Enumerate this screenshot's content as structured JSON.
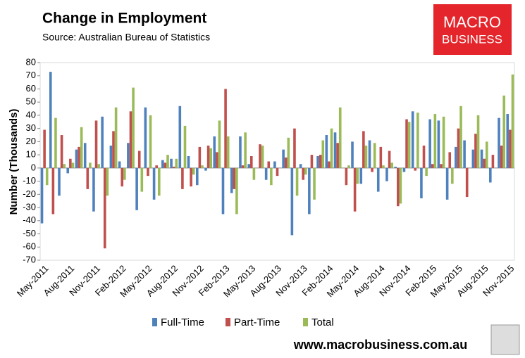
{
  "chart_data": {
    "type": "bar",
    "title": "Change in Employment",
    "subtitle": "Source: Australian Bureau of Statistics",
    "ylabel": "Number (Thousands)",
    "logo": [
      "MACRO",
      "BUSINESS"
    ],
    "footer": "www.macrobusiness.com.au",
    "categories": [
      "May-2011",
      null,
      null,
      "Aug-2011",
      null,
      null,
      "Nov-2011",
      null,
      null,
      "Feb-2012",
      null,
      null,
      "May-2012",
      null,
      null,
      "Aug-2012",
      null,
      null,
      "Nov-2012",
      null,
      null,
      "Feb-2013",
      null,
      null,
      "May-2013",
      null,
      null,
      "Aug-2013",
      null,
      null,
      "Nov-2013",
      null,
      null,
      "Feb-2014",
      null,
      null,
      "May-2014",
      null,
      null,
      "Aug-2014",
      null,
      null,
      "Nov-2014",
      null,
      null,
      "Feb-2015",
      null,
      null,
      "May-2015",
      null,
      null,
      "Aug-2015",
      null,
      null,
      "Nov-2015"
    ],
    "series": [
      {
        "name": "Full-Time",
        "color": "#4f81bd",
        "values": [
          -42,
          73,
          -21,
          -4,
          14,
          19,
          -33,
          39,
          17,
          5,
          19,
          -32,
          46,
          -24,
          6,
          7,
          47,
          9,
          -13,
          -2,
          24,
          -35,
          -19,
          24,
          3,
          0,
          -9,
          5,
          14,
          -51,
          3,
          -35,
          9,
          25,
          27,
          0,
          20,
          -12,
          21,
          -18,
          -10,
          1,
          -3,
          43,
          -23,
          37,
          36,
          -24,
          16,
          21,
          14,
          14,
          -11,
          38,
          41
        ]
      },
      {
        "name": "Part-Time",
        "color": "#c0504d",
        "values": [
          29,
          -35,
          25,
          7,
          16,
          -16,
          36,
          -61,
          28,
          -14,
          43,
          13,
          -6,
          2,
          4,
          1,
          -16,
          -14,
          16,
          17,
          12,
          60,
          -16,
          2,
          9,
          18,
          5,
          -6,
          8,
          30,
          -9,
          10,
          10,
          5,
          19,
          -13,
          -33,
          28,
          -3,
          16,
          13,
          -29,
          37,
          -2,
          17,
          3,
          3,
          12,
          30,
          -22,
          26,
          7,
          10,
          17,
          29
        ]
      },
      {
        "name": "Total",
        "color": "#9bbb59",
        "values": [
          -13,
          38,
          3,
          4,
          31,
          4,
          3,
          -21,
          46,
          -9,
          61,
          -18,
          40,
          -21,
          10,
          7,
          32,
          -5,
          2,
          15,
          36,
          24,
          -35,
          27,
          -9,
          17,
          -13,
          0,
          23,
          -21,
          -5,
          -24,
          21,
          30,
          46,
          2,
          -12,
          17,
          19,
          2,
          4,
          -27,
          35,
          42,
          -6,
          41,
          39,
          -12,
          47,
          0,
          40,
          20,
          0,
          55,
          71
        ]
      }
    ],
    "ylim": [
      -70,
      80
    ],
    "yticks": [
      -70,
      -60,
      -50,
      -40,
      -30,
      -20,
      -10,
      0,
      10,
      20,
      30,
      40,
      50,
      60,
      70,
      80
    ]
  }
}
